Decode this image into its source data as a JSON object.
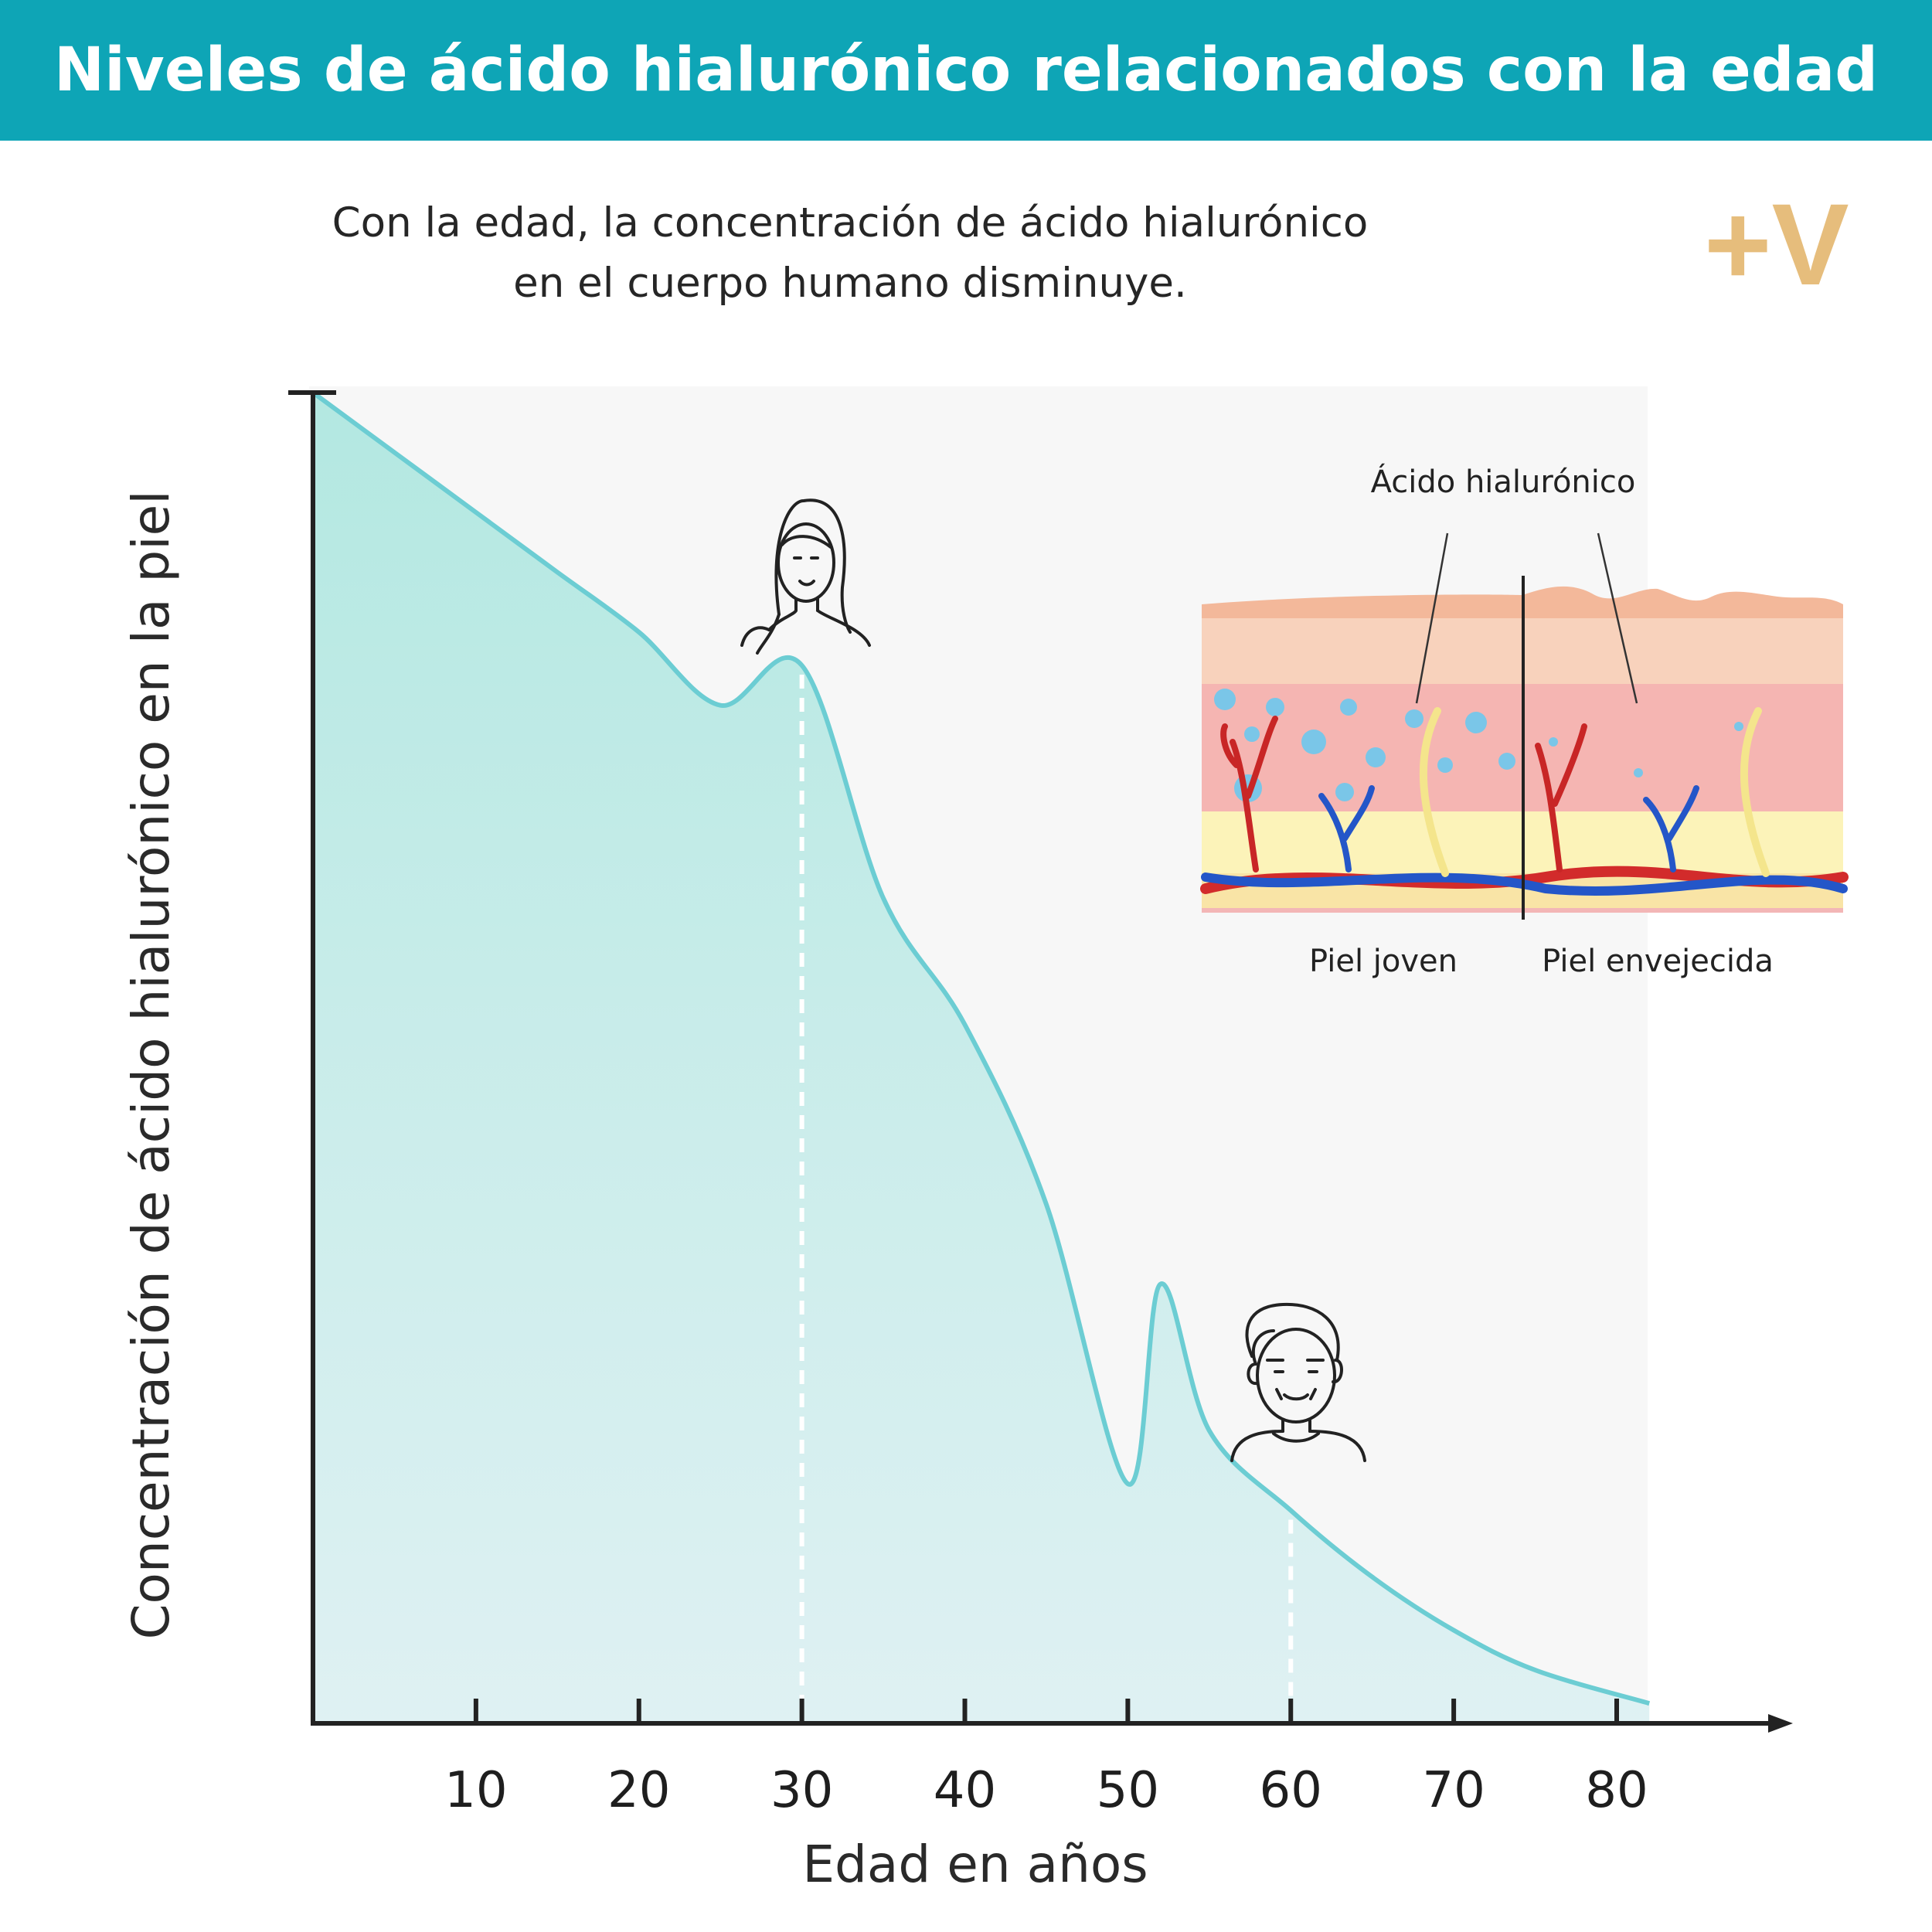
{
  "header": {
    "title": "Niveles de ácido hialurónico relacionados con la edad"
  },
  "subtitle": {
    "line1": "Con la edad, la concentración de ácido hialurónico",
    "line2": "en el cuerpo humano disminuye."
  },
  "logo": {
    "text": "+V",
    "color": "#e6bd7c"
  },
  "colors": {
    "banner": "#0ea5b6",
    "curve": "#6ccdd3",
    "fill_top": "#b3e8e1",
    "fill_bottom": "#dff1f3",
    "plot_bg": "#f7f7f7",
    "axis": "#222222",
    "marker": "#ffffff"
  },
  "chart_data": {
    "type": "area",
    "xlabel": "Edad en años",
    "ylabel": "Concentración de ácido hialurónico en la piel",
    "xlim": [
      0,
      90
    ],
    "ylim": [
      0,
      100
    ],
    "xticks": [
      10,
      20,
      30,
      40,
      50,
      60,
      70,
      80
    ],
    "x": [
      0,
      5,
      10,
      15,
      20,
      25,
      30,
      35,
      40,
      45,
      50,
      52,
      55,
      60,
      65,
      70,
      75,
      82
    ],
    "y": [
      100,
      95.5,
      91,
      86.5,
      82,
      76.5,
      79.5,
      62,
      52.5,
      39,
      18,
      33,
      22,
      16,
      11,
      7,
      4,
      1.5
    ],
    "markers": [
      {
        "x": 30,
        "icon": "young-woman-icon"
      },
      {
        "x": 60,
        "icon": "elderly-woman-icon"
      }
    ],
    "inset": {
      "annotation": "Ácido hialurónico",
      "labels": [
        "Piel joven",
        "Piel envejecida"
      ]
    }
  }
}
